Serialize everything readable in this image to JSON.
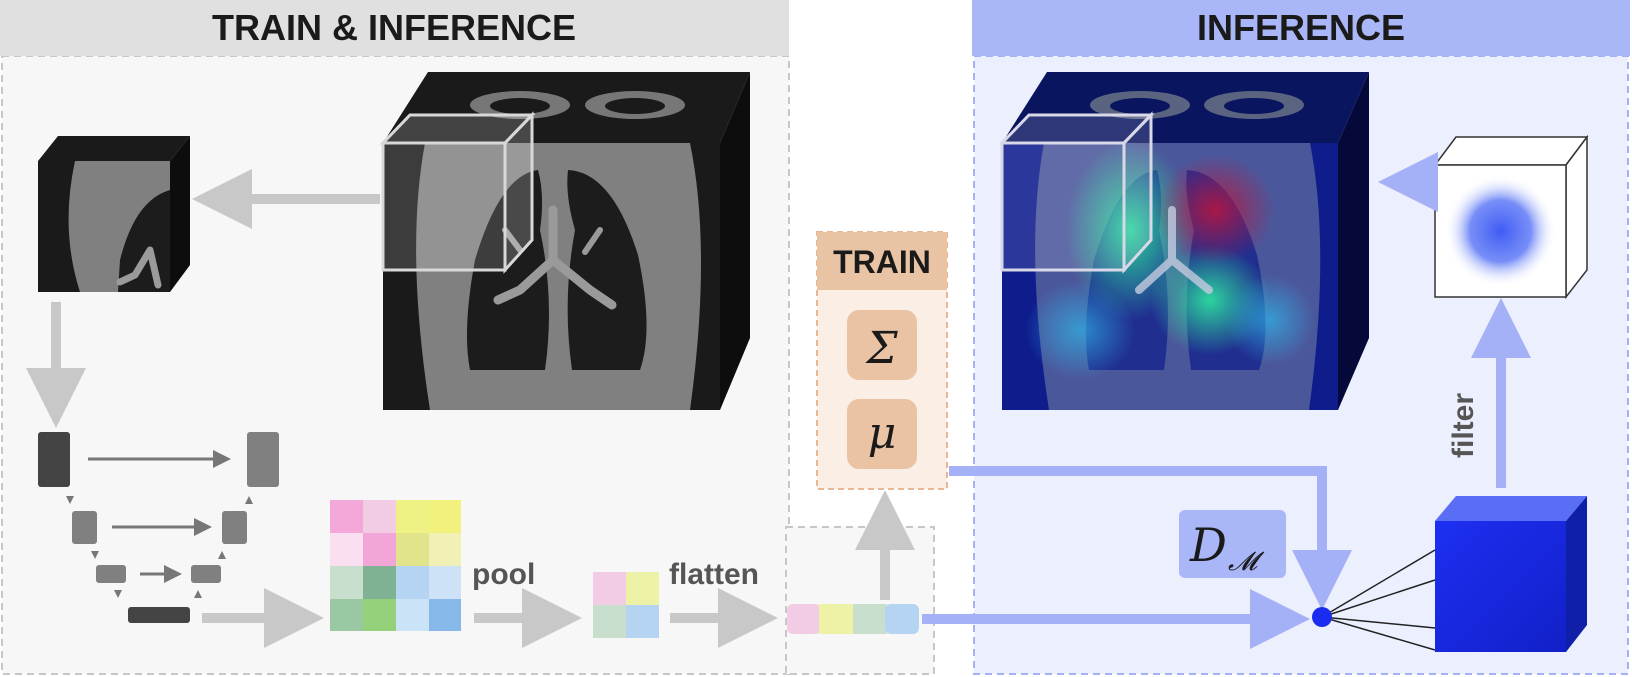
{
  "sections": {
    "train_inference_title": "TRAIN & INFERENCE",
    "inference_title": "INFERENCE",
    "train_box_title": "TRAIN"
  },
  "labels": {
    "pool": "pool",
    "flatten": "flatten",
    "filter": "filter"
  },
  "math": {
    "sigma": "Σ",
    "mu": "μ",
    "distance_main": "D",
    "distance_sub": "𝓜"
  },
  "colors": {
    "gray_header": "#e0e0e0",
    "blue_header": "#a9b6f7",
    "blue_panel": "#eceffd",
    "train_header": "#e8c3a4",
    "train_cell": "#e9c3a4",
    "arrow_gray": "#c8c8c8",
    "arrow_blue": "#a4b1f7",
    "cube_blue": "#1a2cf0",
    "feature_pink": "#f3a8d9",
    "feature_yellow": "#eef284",
    "feature_green": "#a3d39b",
    "feature_blue": "#a6cff5"
  },
  "icons": [
    "ct-volume",
    "ct-patch",
    "unet-encoder-decoder",
    "feature-map-grid",
    "pooled-vector",
    "flattened-vector",
    "anomaly-heatmap",
    "blurred-filter-cube",
    "blue-output-cube",
    "distance-node"
  ]
}
